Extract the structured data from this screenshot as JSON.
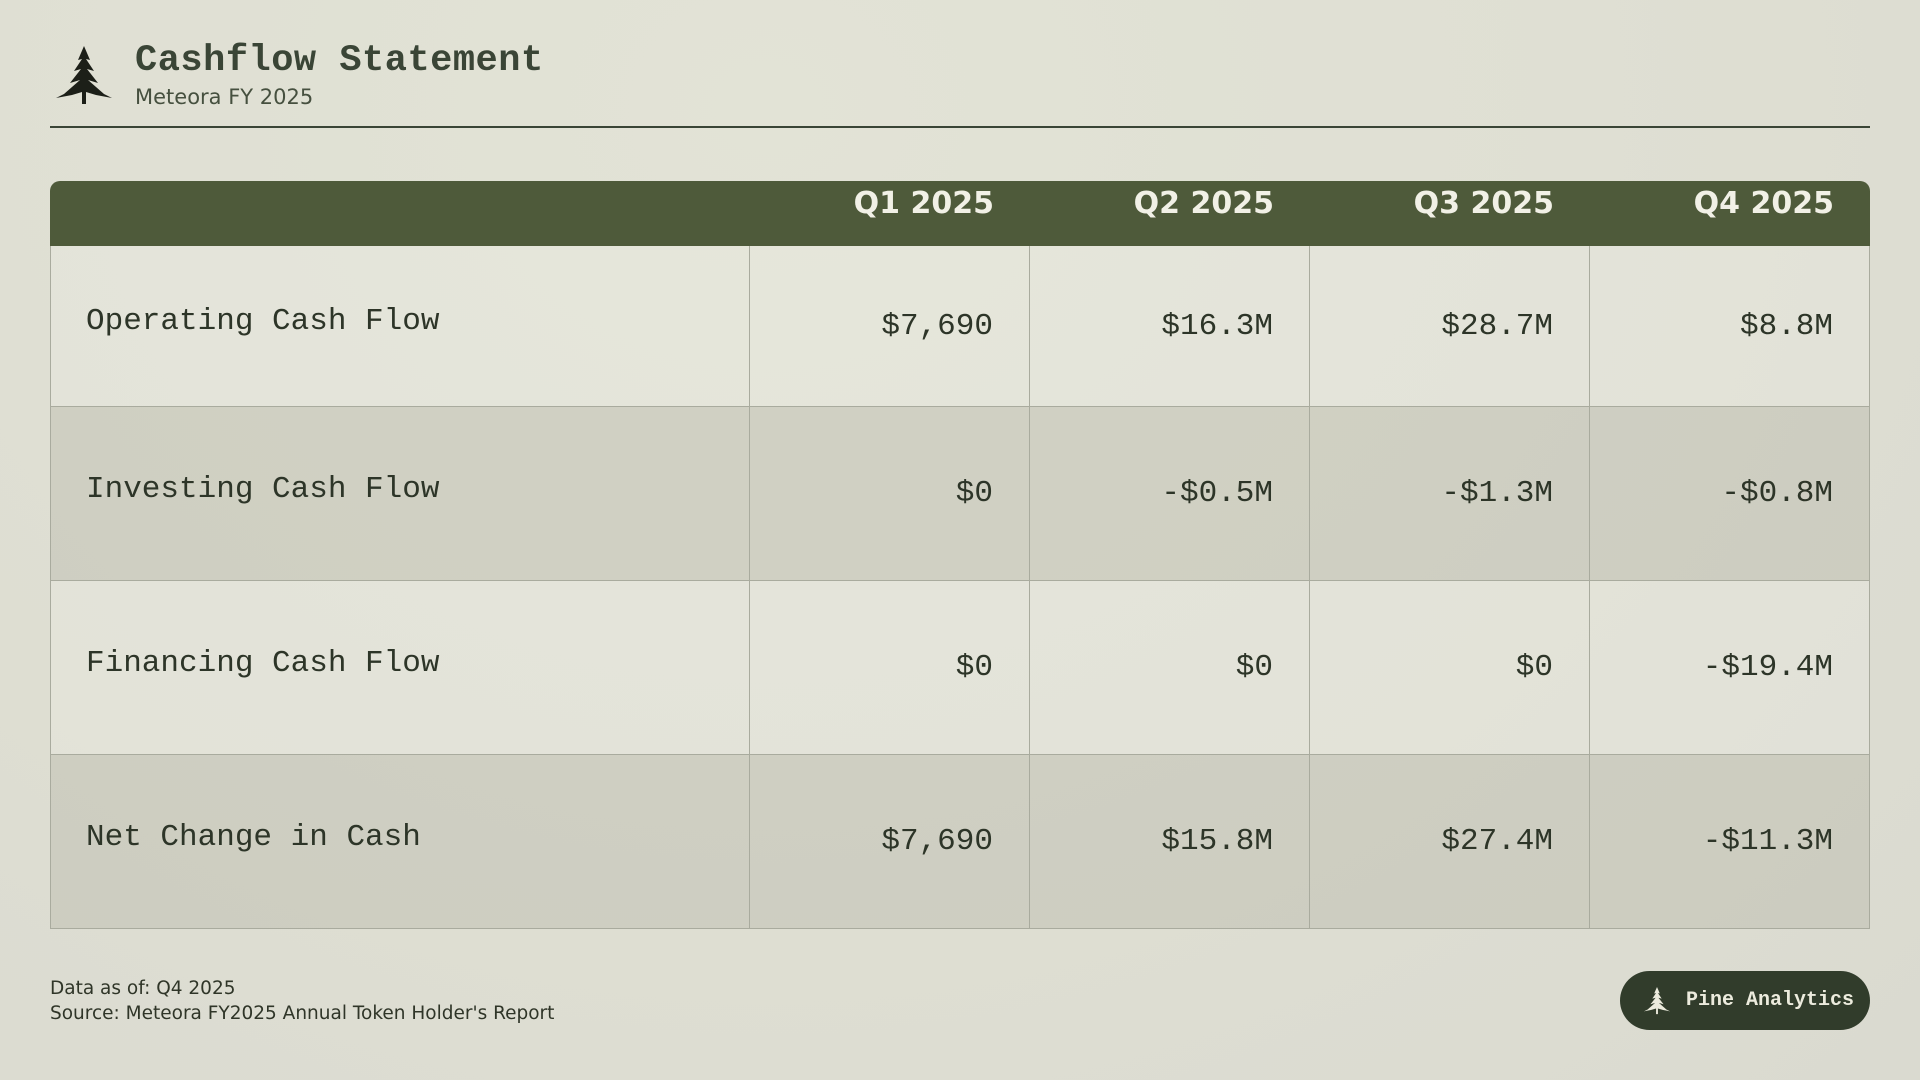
{
  "header": {
    "title": "Cashflow Statement",
    "subtitle": "Meteora FY 2025",
    "logo_icon": "pine-tree-icon"
  },
  "table": {
    "columns": [
      "",
      "Q1 2025",
      "Q2 2025",
      "Q3 2025",
      "Q4 2025"
    ],
    "rows": [
      {
        "label": "Operating Cash Flow",
        "values": [
          "$7,690",
          "$16.3M",
          "$28.7M",
          "$8.8M"
        ]
      },
      {
        "label": "Investing Cash Flow",
        "values": [
          "$0",
          "-$0.5M",
          "-$1.3M",
          "-$0.8M"
        ]
      },
      {
        "label": "Financing Cash Flow",
        "values": [
          "$0",
          "$0",
          "$0",
          "-$19.4M"
        ]
      },
      {
        "label": "Net Change in Cash",
        "values": [
          "$7,690",
          "$15.8M",
          "$27.4M",
          "-$11.3M"
        ]
      }
    ]
  },
  "footer": {
    "data_as_of": "Data as of: Q4 2025",
    "source": "Source: Meteora FY2025 Annual Token Holder's Report",
    "brand": "Pine Analytics"
  },
  "colors": {
    "header_bg": "#4e5a3a",
    "badge_bg": "#313c2b",
    "text": "#2f3a2a"
  }
}
